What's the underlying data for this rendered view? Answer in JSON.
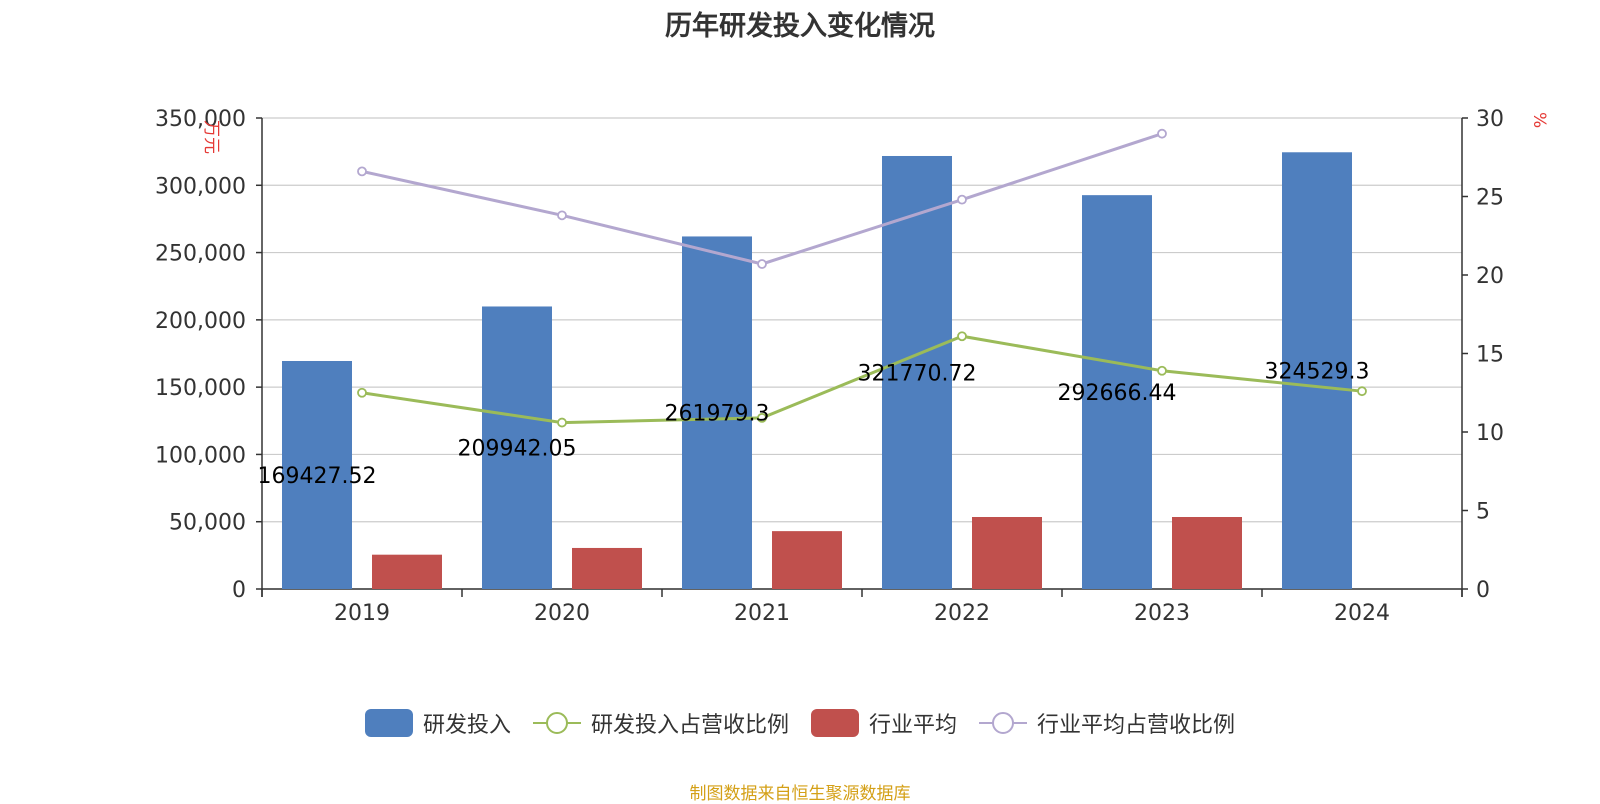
{
  "chart_data": {
    "type": "bar",
    "title": "历年研发投入变化情况",
    "categories": [
      "2019",
      "2020",
      "2021",
      "2022",
      "2023",
      "2024"
    ],
    "y_left": {
      "label": "万元",
      "ylim": [
        0,
        350000
      ],
      "ticks": [
        "0",
        "50,000",
        "100,000",
        "150,000",
        "200,000",
        "250,000",
        "300,000",
        "350,000"
      ],
      "tick_values": [
        0,
        50000,
        100000,
        150000,
        200000,
        250000,
        300000,
        350000
      ]
    },
    "y_right": {
      "label": "%",
      "ylim": [
        0,
        30
      ],
      "ticks": [
        "0",
        "5",
        "10",
        "15",
        "20",
        "25",
        "30"
      ],
      "tick_values": [
        0,
        5,
        10,
        15,
        20,
        25,
        30
      ]
    },
    "series": [
      {
        "name": "研发投入",
        "kind": "bar",
        "axis": "left",
        "color": "#4F7FBE",
        "values": [
          169427.52,
          209942.05,
          261979.3,
          321770.72,
          292666.44,
          324529.3
        ],
        "labels": [
          "169427.52",
          "209942.05",
          "261979.3",
          "321770.72",
          "292666.44",
          "324529.3"
        ]
      },
      {
        "name": "研发投入占营收比例",
        "kind": "line",
        "axis": "right",
        "color": "#9BBB59",
        "values": [
          12.5,
          10.6,
          10.9,
          16.1,
          13.9,
          12.6
        ]
      },
      {
        "name": "行业平均",
        "kind": "bar",
        "axis": "left",
        "color": "#C0504D",
        "values": [
          25500,
          30500,
          43000,
          53500,
          53500,
          null
        ]
      },
      {
        "name": "行业平均占营收比例",
        "kind": "line",
        "axis": "right",
        "color": "#B3A7CF",
        "values": [
          26.6,
          23.8,
          20.7,
          24.8,
          29.0,
          null
        ]
      }
    ],
    "grid": true,
    "legend_position": "bottom"
  },
  "legend": {
    "items": [
      {
        "label": "研发投入",
        "type": "bar",
        "color": "#4F7FBE"
      },
      {
        "label": "研发投入占营收比例",
        "type": "line",
        "color": "#9BBB59"
      },
      {
        "label": "行业平均",
        "type": "bar",
        "color": "#C0504D"
      },
      {
        "label": "行业平均占营收比例",
        "type": "line",
        "color": "#B3A7CF"
      }
    ]
  },
  "source_note": {
    "text": "制图数据来自恒生聚源数据库",
    "color": "#D4A017"
  },
  "colors": {
    "left_axis_label": "#E53935",
    "grid": "#CCCCCC",
    "axis": "#333333",
    "text": "#333333"
  }
}
